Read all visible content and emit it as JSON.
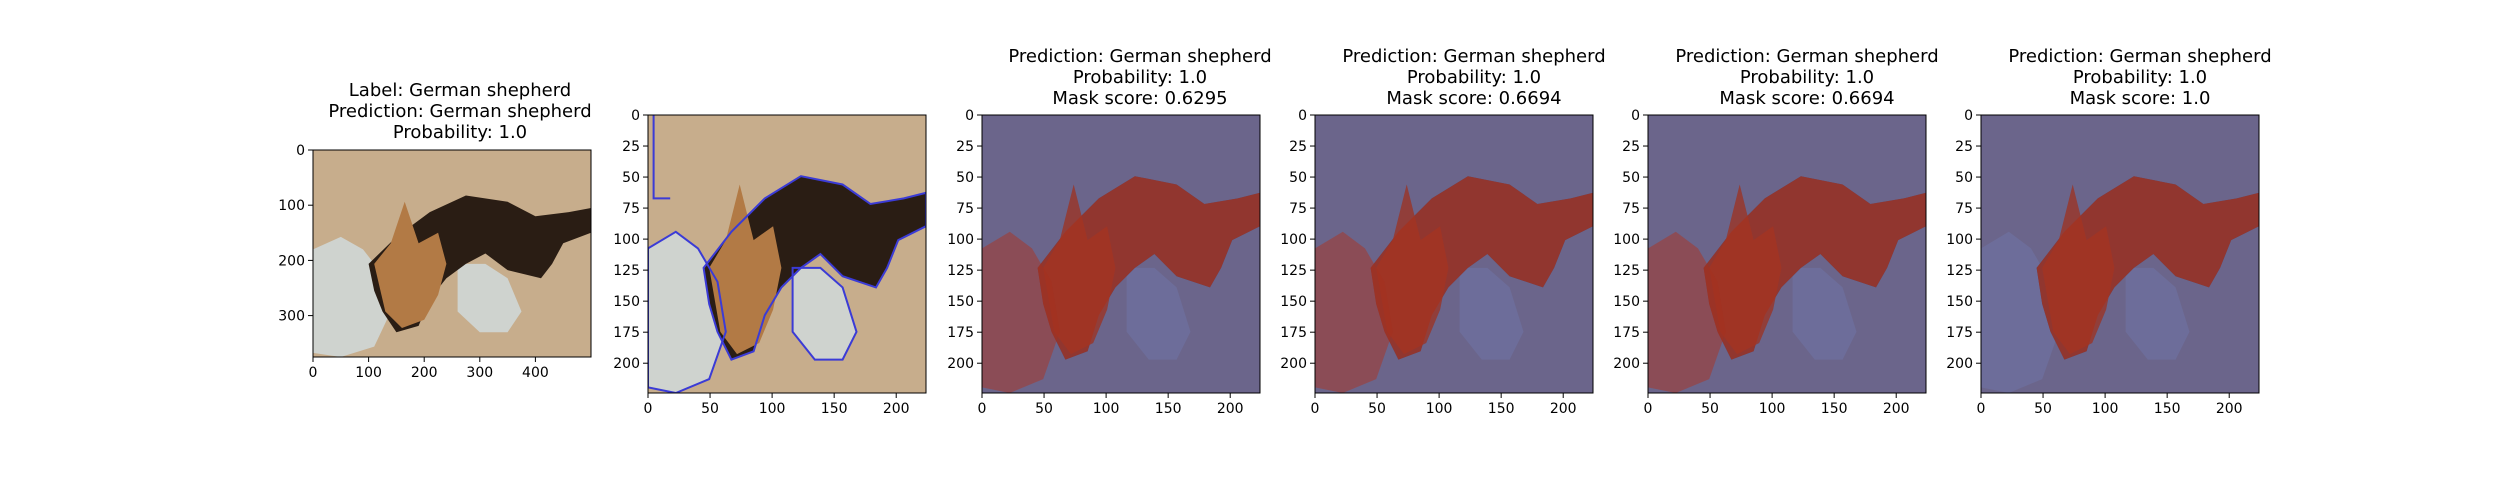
{
  "panels": [
    {
      "id": "original",
      "title_lines": [
        "Label: German shepherd",
        "Prediction: German shepherd",
        "Probability: 1.0"
      ],
      "x_ticks": [
        "0",
        "100",
        "200",
        "300",
        "400"
      ],
      "y_ticks": [
        "0",
        "100",
        "200",
        "300"
      ],
      "overlay": "none"
    },
    {
      "id": "segments",
      "title_lines": [],
      "x_ticks": [
        "0",
        "50",
        "100",
        "150",
        "200"
      ],
      "y_ticks": [
        "0",
        "25",
        "50",
        "75",
        "100",
        "125",
        "150",
        "175",
        "200"
      ],
      "overlay": "outline"
    },
    {
      "id": "mask-1",
      "title_lines": [
        "Prediction: German shepherd",
        "Probability: 1.0",
        "Mask score: 0.6295"
      ],
      "x_ticks": [
        "0",
        "50",
        "100",
        "150",
        "200"
      ],
      "y_ticks": [
        "0",
        "25",
        "50",
        "75",
        "100",
        "125",
        "150",
        "175",
        "200"
      ],
      "overlay": "mask"
    },
    {
      "id": "mask-2",
      "title_lines": [
        "Prediction: German shepherd",
        "Probability: 1.0",
        "Mask score: 0.6694"
      ],
      "x_ticks": [
        "0",
        "50",
        "100",
        "150",
        "200"
      ],
      "y_ticks": [
        "0",
        "25",
        "50",
        "75",
        "100",
        "125",
        "150",
        "175",
        "200"
      ],
      "overlay": "mask"
    },
    {
      "id": "mask-3",
      "title_lines": [
        "Prediction: German shepherd",
        "Probability: 1.0",
        "Mask score: 0.6694"
      ],
      "x_ticks": [
        "0",
        "50",
        "100",
        "150",
        "200"
      ],
      "y_ticks": [
        "0",
        "25",
        "50",
        "75",
        "100",
        "125",
        "150",
        "175",
        "200"
      ],
      "overlay": "mask"
    },
    {
      "id": "mask-4",
      "title_lines": [
        "Prediction: German shepherd",
        "Probability: 1.0",
        "Mask score: 1.0"
      ],
      "x_ticks": [
        "0",
        "50",
        "100",
        "150",
        "200"
      ],
      "y_ticks": [
        "0",
        "25",
        "50",
        "75",
        "100",
        "125",
        "150",
        "175",
        "200"
      ],
      "overlay": "mask-full"
    }
  ],
  "colors": {
    "floor": "#c7ad8c",
    "floor_dark": "#9c8467",
    "dog": "#2a1d14",
    "dog_tan": "#b27a45",
    "mop": "#cfd3cf",
    "mask_red": "#a4321f",
    "mask_blue": "#51518a",
    "outline": "#3b3bd6"
  }
}
